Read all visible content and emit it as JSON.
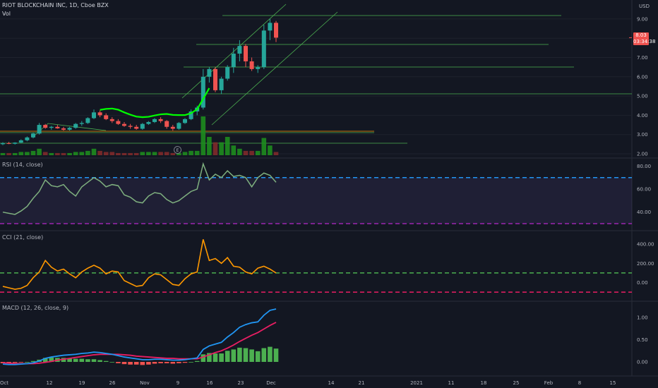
{
  "symbol_title": "RIOT BLOCKCHAIN INC, 1D, Cboe BZX",
  "volume_label": "Vol",
  "currency": "USD",
  "last_price": "8.03",
  "countdown": "03:34:38",
  "earnings_marker": "E",
  "price_axis": [
    "9.00",
    "8.00",
    "7.00",
    "6.00",
    "5.00",
    "4.00",
    "3.00",
    "2.00"
  ],
  "rsi": {
    "label": "RSI (14, close)",
    "axis": [
      "80.00",
      "60.00",
      "40.00"
    ]
  },
  "cci": {
    "label": "CCI (21, close)",
    "axis": [
      "400.00",
      "200.00",
      "0.00"
    ]
  },
  "macd": {
    "label": "MACD (12, 26, close, 9)",
    "axis": [
      "1.00",
      "0.50",
      "0.00"
    ]
  },
  "time_axis": [
    "Oct",
    "12",
    "19",
    "26",
    "Nov",
    "9",
    "16",
    "23",
    "Dec",
    "14",
    "21",
    "2021",
    "11",
    "18",
    "25",
    "Feb",
    "8",
    "15"
  ],
  "colors": {
    "background": "#131722",
    "up": "#26a69a",
    "down": "#ef5350",
    "line_green": "#4caf50",
    "bright_green": "#00ff00",
    "orange": "#ff9800",
    "macd_blue": "#2196f3",
    "signal_pink": "#e91e63",
    "rsi_band": "#7e57c2"
  },
  "chart_data": {
    "type": "line",
    "candles": [
      {
        "o": 2.5,
        "h": 2.6,
        "l": 2.45,
        "c": 2.55
      },
      {
        "o": 2.55,
        "h": 2.62,
        "l": 2.5,
        "c": 2.52
      },
      {
        "o": 2.52,
        "h": 2.6,
        "l": 2.48,
        "c": 2.58
      },
      {
        "o": 2.58,
        "h": 2.75,
        "l": 2.55,
        "c": 2.7
      },
      {
        "o": 2.7,
        "h": 2.9,
        "l": 2.65,
        "c": 2.85
      },
      {
        "o": 2.85,
        "h": 3.1,
        "l": 2.8,
        "c": 3.05
      },
      {
        "o": 3.05,
        "h": 3.6,
        "l": 3.0,
        "c": 3.5
      },
      {
        "o": 3.5,
        "h": 3.55,
        "l": 3.3,
        "c": 3.35
      },
      {
        "o": 3.35,
        "h": 3.45,
        "l": 3.25,
        "c": 3.4
      },
      {
        "o": 3.4,
        "h": 3.5,
        "l": 3.3,
        "c": 3.32
      },
      {
        "o": 3.32,
        "h": 3.4,
        "l": 3.2,
        "c": 3.25
      },
      {
        "o": 3.25,
        "h": 3.4,
        "l": 3.2,
        "c": 3.35
      },
      {
        "o": 3.35,
        "h": 3.6,
        "l": 3.3,
        "c": 3.55
      },
      {
        "o": 3.55,
        "h": 3.7,
        "l": 3.45,
        "c": 3.6
      },
      {
        "o": 3.6,
        "h": 3.9,
        "l": 3.55,
        "c": 3.85
      },
      {
        "o": 3.85,
        "h": 4.3,
        "l": 3.8,
        "c": 4.15
      },
      {
        "o": 4.15,
        "h": 4.25,
        "l": 3.9,
        "c": 4.0
      },
      {
        "o": 4.0,
        "h": 4.1,
        "l": 3.75,
        "c": 3.8
      },
      {
        "o": 3.8,
        "h": 3.9,
        "l": 3.6,
        "c": 3.7
      },
      {
        "o": 3.7,
        "h": 3.8,
        "l": 3.5,
        "c": 3.55
      },
      {
        "o": 3.55,
        "h": 3.65,
        "l": 3.4,
        "c": 3.45
      },
      {
        "o": 3.45,
        "h": 3.55,
        "l": 3.3,
        "c": 3.4
      },
      {
        "o": 3.4,
        "h": 3.5,
        "l": 3.25,
        "c": 3.3
      },
      {
        "o": 3.3,
        "h": 3.6,
        "l": 3.25,
        "c": 3.55
      },
      {
        "o": 3.55,
        "h": 3.7,
        "l": 3.5,
        "c": 3.65
      },
      {
        "o": 3.65,
        "h": 3.85,
        "l": 3.6,
        "c": 3.8
      },
      {
        "o": 3.8,
        "h": 3.9,
        "l": 3.6,
        "c": 3.7
      },
      {
        "o": 3.7,
        "h": 3.75,
        "l": 3.3,
        "c": 3.4
      },
      {
        "o": 3.4,
        "h": 3.5,
        "l": 3.2,
        "c": 3.3
      },
      {
        "o": 3.3,
        "h": 3.65,
        "l": 3.25,
        "c": 3.6
      },
      {
        "o": 3.6,
        "h": 3.85,
        "l": 3.55,
        "c": 3.8
      },
      {
        "o": 3.8,
        "h": 4.3,
        "l": 3.75,
        "c": 4.2
      },
      {
        "o": 4.2,
        "h": 4.5,
        "l": 4.0,
        "c": 4.4
      },
      {
        "o": 4.4,
        "h": 6.4,
        "l": 4.3,
        "c": 6.0
      },
      {
        "o": 6.0,
        "h": 6.5,
        "l": 5.7,
        "c": 6.4
      },
      {
        "o": 6.4,
        "h": 6.5,
        "l": 5.2,
        "c": 5.3
      },
      {
        "o": 5.3,
        "h": 6.0,
        "l": 5.1,
        "c": 5.9
      },
      {
        "o": 5.9,
        "h": 6.6,
        "l": 5.8,
        "c": 6.5
      },
      {
        "o": 6.5,
        "h": 7.5,
        "l": 6.2,
        "c": 7.2
      },
      {
        "o": 7.2,
        "h": 7.9,
        "l": 6.8,
        "c": 7.6
      },
      {
        "o": 7.6,
        "h": 7.7,
        "l": 6.5,
        "c": 6.8
      },
      {
        "o": 6.8,
        "h": 7.0,
        "l": 6.3,
        "c": 6.4
      },
      {
        "o": 6.4,
        "h": 6.6,
        "l": 6.2,
        "c": 6.5
      },
      {
        "o": 6.5,
        "h": 8.7,
        "l": 6.4,
        "c": 8.4
      },
      {
        "o": 8.4,
        "h": 9.0,
        "l": 7.9,
        "c": 8.8
      },
      {
        "o": 8.8,
        "h": 8.9,
        "l": 7.8,
        "c": 8.03
      }
    ],
    "volume": [
      0.2,
      0.2,
      0.2,
      0.3,
      0.3,
      0.4,
      0.6,
      0.3,
      0.2,
      0.2,
      0.2,
      0.2,
      0.3,
      0.3,
      0.4,
      0.6,
      0.4,
      0.3,
      0.3,
      0.2,
      0.2,
      0.2,
      0.2,
      0.3,
      0.3,
      0.3,
      0.3,
      0.3,
      0.2,
      0.2,
      0.3,
      0.4,
      0.4,
      3.6,
      1.7,
      1.2,
      1.2,
      1.7,
      0.9,
      0.6,
      0.4,
      0.4,
      0.4,
      1.6,
      0.9,
      0.3
    ],
    "rsi": [
      40,
      39,
      38,
      41,
      45,
      52,
      58,
      68,
      63,
      62,
      64,
      58,
      54,
      62,
      66,
      70,
      67,
      62,
      64,
      63,
      55,
      53,
      49,
      48,
      54,
      57,
      56,
      51,
      48,
      50,
      54,
      58,
      60,
      82,
      68,
      73,
      70,
      76,
      71,
      72,
      70,
      62,
      70,
      74,
      72,
      66
    ],
    "cci": [
      -40,
      -55,
      -70,
      -60,
      -30,
      50,
      110,
      230,
      160,
      120,
      140,
      90,
      50,
      110,
      150,
      180,
      150,
      90,
      120,
      110,
      20,
      -10,
      -40,
      -30,
      50,
      90,
      80,
      30,
      -20,
      -30,
      40,
      90,
      110,
      450,
      230,
      250,
      200,
      260,
      170,
      160,
      110,
      90,
      150,
      170,
      140,
      100
    ],
    "macd": [
      -0.05,
      -0.06,
      -0.06,
      -0.05,
      -0.04,
      -0.02,
      0.02,
      0.08,
      0.11,
      0.13,
      0.15,
      0.16,
      0.17,
      0.19,
      0.2,
      0.22,
      0.21,
      0.19,
      0.17,
      0.14,
      0.11,
      0.09,
      0.07,
      0.05,
      0.05,
      0.06,
      0.06,
      0.05,
      0.04,
      0.04,
      0.05,
      0.07,
      0.09,
      0.28,
      0.36,
      0.4,
      0.44,
      0.56,
      0.66,
      0.78,
      0.84,
      0.88,
      0.9,
      1.05,
      1.16,
      1.19
    ],
    "signal": [
      -0.02,
      -0.03,
      -0.04,
      -0.04,
      -0.04,
      -0.04,
      -0.03,
      -0.01,
      0.01,
      0.04,
      0.06,
      0.08,
      0.1,
      0.12,
      0.14,
      0.16,
      0.17,
      0.17,
      0.17,
      0.17,
      0.16,
      0.15,
      0.13,
      0.12,
      0.11,
      0.1,
      0.09,
      0.08,
      0.08,
      0.07,
      0.07,
      0.07,
      0.07,
      0.11,
      0.16,
      0.21,
      0.25,
      0.31,
      0.38,
      0.46,
      0.53,
      0.6,
      0.66,
      0.74,
      0.82,
      0.89
    ],
    "histogram": [
      -0.03,
      -0.03,
      -0.02,
      -0.01,
      0.0,
      0.02,
      0.05,
      0.09,
      0.1,
      0.09,
      0.09,
      0.08,
      0.07,
      0.07,
      0.06,
      0.06,
      0.04,
      0.02,
      0.0,
      -0.03,
      -0.05,
      -0.06,
      -0.06,
      -0.07,
      -0.06,
      -0.04,
      -0.03,
      -0.03,
      -0.04,
      -0.03,
      -0.02,
      0.0,
      0.02,
      0.17,
      0.2,
      0.19,
      0.19,
      0.25,
      0.28,
      0.32,
      0.31,
      0.28,
      0.24,
      0.31,
      0.34,
      0.3
    ],
    "rsi_levels": [
      70,
      30
    ],
    "cci_levels": [
      100,
      -100
    ]
  }
}
